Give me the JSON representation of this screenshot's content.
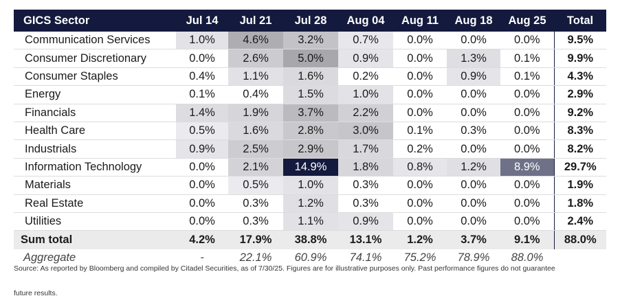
{
  "table": {
    "headers": [
      "GICS Sector",
      "Jul 14",
      "Jul 21",
      "Jul 28",
      "Aug 04",
      "Aug 11",
      "Aug 18",
      "Aug 25",
      "Total"
    ],
    "rows": [
      {
        "sector": "Communication Services",
        "values": [
          "1.0%",
          "4.6%",
          "3.2%",
          "0.7%",
          "0.0%",
          "0.0%",
          "0.0%"
        ],
        "total": "9.5%"
      },
      {
        "sector": "Consumer Discretionary",
        "values": [
          "0.0%",
          "2.6%",
          "5.0%",
          "0.9%",
          "0.0%",
          "1.3%",
          "0.1%"
        ],
        "total": "9.9%"
      },
      {
        "sector": "Consumer Staples",
        "values": [
          "0.4%",
          "1.1%",
          "1.6%",
          "0.2%",
          "0.0%",
          "0.9%",
          "0.1%"
        ],
        "total": "4.3%"
      },
      {
        "sector": "Energy",
        "values": [
          "0.1%",
          "0.4%",
          "1.5%",
          "1.0%",
          "0.0%",
          "0.0%",
          "0.0%"
        ],
        "total": "2.9%"
      },
      {
        "sector": "Financials",
        "values": [
          "1.4%",
          "1.9%",
          "3.7%",
          "2.2%",
          "0.0%",
          "0.0%",
          "0.0%"
        ],
        "total": "9.2%"
      },
      {
        "sector": "Health Care",
        "values": [
          "0.5%",
          "1.6%",
          "2.8%",
          "3.0%",
          "0.1%",
          "0.3%",
          "0.0%"
        ],
        "total": "8.3%"
      },
      {
        "sector": "Industrials",
        "values": [
          "0.9%",
          "2.5%",
          "2.9%",
          "1.7%",
          "0.2%",
          "0.0%",
          "0.0%"
        ],
        "total": "8.2%"
      },
      {
        "sector": "Information Technology",
        "values": [
          "0.0%",
          "2.1%",
          "14.9%",
          "1.8%",
          "0.8%",
          "1.2%",
          "8.9%"
        ],
        "total": "29.7%"
      },
      {
        "sector": "Materials",
        "values": [
          "0.0%",
          "0.5%",
          "1.0%",
          "0.3%",
          "0.0%",
          "0.0%",
          "0.0%"
        ],
        "total": "1.9%"
      },
      {
        "sector": "Real Estate",
        "values": [
          "0.0%",
          "0.3%",
          "1.2%",
          "0.3%",
          "0.0%",
          "0.0%",
          "0.0%"
        ],
        "total": "1.8%"
      },
      {
        "sector": "Utilities",
        "values": [
          "0.0%",
          "0.3%",
          "1.1%",
          "0.9%",
          "0.0%",
          "0.0%",
          "0.0%"
        ],
        "total": "2.4%"
      }
    ],
    "sum_row": {
      "label": "Sum total",
      "values": [
        "4.2%",
        "17.9%",
        "38.8%",
        "13.1%",
        "1.2%",
        "3.7%",
        "9.1%"
      ],
      "total": "88.0%"
    },
    "aggregate_row": {
      "label": "Aggregate",
      "values": [
        "-",
        "22.1%",
        "60.9%",
        "74.1%",
        "75.2%",
        "78.9%",
        "88.0%"
      ],
      "total": ""
    }
  },
  "colors": {
    "header_bg": "#141a3d",
    "heat_high": "#141a3d",
    "heat_low": "#ffffff"
  },
  "footnote": {
    "line1": "Source: As reported by Bloomberg and compiled by Citadel Securities, as of 7/30/25. Figures are for illustrative purposes only. Past performance figures do not guarantee",
    "line2": "future results."
  }
}
